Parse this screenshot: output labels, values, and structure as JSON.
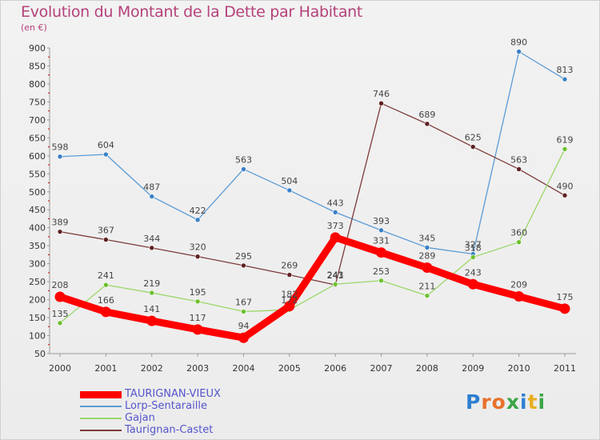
{
  "header": {
    "title": "Evolution du Montant de la Dette par Habitant",
    "subtitle": "(en €)"
  },
  "logo": {
    "text": "Proxiti",
    "colors": [
      "#2e7fd1",
      "#e8702a",
      "#e8702a",
      "#3aa547",
      "#2e7fd1",
      "#e8b020",
      "#3aa547"
    ]
  },
  "chart_data": {
    "type": "line",
    "title": "Evolution du Montant de la Dette par Habitant",
    "subtitle": "(en €)",
    "xlabel": "",
    "ylabel": "",
    "x": [
      "2000",
      "2001",
      "2002",
      "2003",
      "2004",
      "2005",
      "2006",
      "2007",
      "2008",
      "2009",
      "2010",
      "2011"
    ],
    "ylim": [
      50,
      900
    ],
    "yticks": [
      50,
      100,
      150,
      200,
      250,
      300,
      350,
      400,
      450,
      500,
      550,
      600,
      650,
      700,
      750,
      800,
      850,
      900
    ],
    "grid": false,
    "legend_position": "bottom-left",
    "series": [
      {
        "name": "Lorp-Sentaraille",
        "color": "#5b9bd5",
        "marker": "#3a80c6",
        "values": [
          598,
          604,
          487,
          422,
          563,
          504,
          443,
          393,
          345,
          327,
          890,
          813
        ],
        "labels": [
          "598",
          "604",
          "487",
          "422",
          "563",
          "504",
          "443",
          "393",
          "345",
          "327",
          "890",
          "813"
        ]
      },
      {
        "name": "Taurignan-Castet",
        "color": "#7d3a3a",
        "marker": "#5e2020",
        "values": [
          389,
          367,
          344,
          320,
          295,
          269,
          241,
          746,
          689,
          625,
          563,
          490
        ],
        "labels": [
          "389",
          "367",
          "344",
          "320",
          "295",
          "269",
          "241",
          "746",
          "689",
          "625",
          "563",
          "490"
        ]
      },
      {
        "name": "Gajan",
        "color": "#9bd86a",
        "marker": "#6cc12e",
        "values": [
          135,
          241,
          219,
          195,
          167,
          172,
          243,
          253,
          211,
          318,
          360,
          619
        ],
        "labels": [
          "135",
          "241",
          "219",
          "195",
          "167",
          "172",
          "243",
          "253",
          "211",
          "318",
          "360",
          "619"
        ]
      },
      {
        "name": "TAURIGNAN-VIEUX",
        "color": "#ff0000",
        "marker": "#ff0000",
        "bold": true,
        "values": [
          208,
          166,
          141,
          117,
          94,
          182,
          373,
          331,
          289,
          243,
          209,
          175
        ],
        "labels": [
          "208",
          "166",
          "141",
          "117",
          "94",
          "182",
          "373",
          "331",
          "289",
          "243",
          "209",
          "175"
        ]
      }
    ],
    "legend": [
      {
        "name": "TAURIGNAN-VIEUX",
        "color": "#ff0000",
        "thick": true
      },
      {
        "name": "Lorp-Sentaraille",
        "color": "#5b9bd5",
        "thick": false
      },
      {
        "name": "Gajan",
        "color": "#9bd86a",
        "thick": false
      },
      {
        "name": "Taurignan-Castet",
        "color": "#7d3a3a",
        "thick": false
      }
    ]
  }
}
